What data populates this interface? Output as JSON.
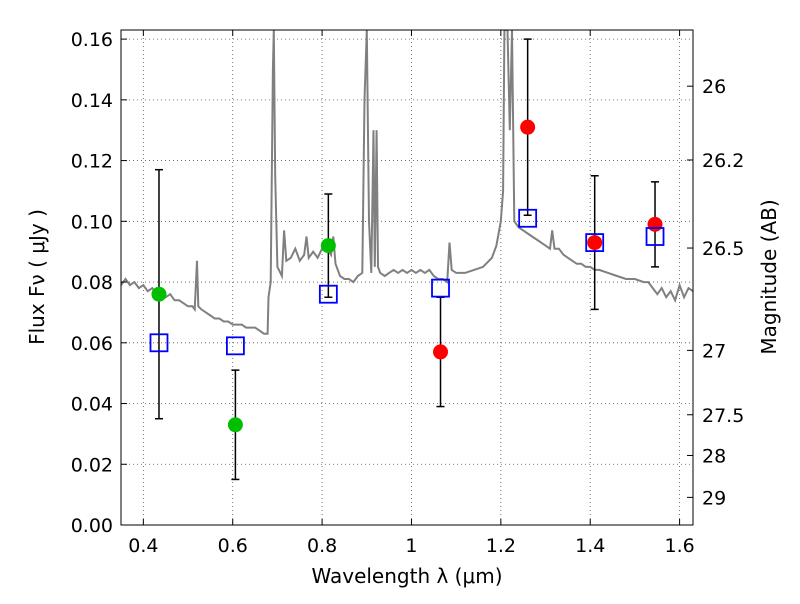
{
  "chart_data": {
    "type": "scatter",
    "xlabel": "Wavelength  λ (μm)",
    "ylabel": "Flux  Fν  ( μJy )",
    "y2label": "Magnitude (AB)",
    "xlim": [
      0.35,
      1.63
    ],
    "ylim": [
      0.0,
      0.163
    ],
    "grid": true,
    "x_ticks": [
      0.4,
      0.6,
      0.8,
      1.0,
      1.2,
      1.4,
      1.6
    ],
    "x_tick_labels": [
      "0.4",
      "0.6",
      "0.8",
      "1",
      "1.2",
      "1.4",
      "1.6"
    ],
    "y_ticks": [
      0.0,
      0.02,
      0.04,
      0.06,
      0.08,
      0.1,
      0.12,
      0.14,
      0.16
    ],
    "y_tick_labels": [
      "0.00",
      "0.02",
      "0.04",
      "0.06",
      "0.08",
      "0.10",
      "0.12",
      "0.14",
      "0.16"
    ],
    "y2_ticks": [
      {
        "label": "26",
        "flux": 0.1445
      },
      {
        "label": "26.2",
        "flux": 0.1202
      },
      {
        "label": "26.5",
        "flux": 0.0912
      },
      {
        "label": "27",
        "flux": 0.0575
      },
      {
        "label": "27.5",
        "flux": 0.0363
      },
      {
        "label": "28",
        "flux": 0.0229
      },
      {
        "label": "29",
        "flux": 0.0091
      }
    ],
    "colors": {
      "spectrum": "#808080",
      "green": "#00bf00",
      "red": "#ff0000",
      "model": "#0000ff",
      "errorbar": "#000000",
      "grid": "#555555"
    },
    "series": [
      {
        "marker": "circle",
        "color": "#00bf00",
        "points": [
          {
            "x": 0.435,
            "y": 0.076,
            "err": 0.041
          },
          {
            "x": 0.606,
            "y": 0.033,
            "err": 0.018
          },
          {
            "x": 0.814,
            "y": 0.092,
            "err": 0.017
          }
        ]
      },
      {
        "marker": "circle",
        "color": "#ff0000",
        "points": [
          {
            "x": 1.065,
            "y": 0.057,
            "err": 0.018
          },
          {
            "x": 1.26,
            "y": 0.131,
            "err": 0.029
          },
          {
            "x": 1.41,
            "y": 0.093,
            "err": 0.022
          },
          {
            "x": 1.545,
            "y": 0.099,
            "err": 0.014
          }
        ]
      },
      {
        "marker": "open-square",
        "color": "#0000ff",
        "points": [
          {
            "x": 0.435,
            "y": 0.06
          },
          {
            "x": 0.606,
            "y": 0.059
          },
          {
            "x": 0.814,
            "y": 0.076
          },
          {
            "x": 1.065,
            "y": 0.078
          },
          {
            "x": 1.26,
            "y": 0.101
          },
          {
            "x": 1.41,
            "y": 0.093
          },
          {
            "x": 1.545,
            "y": 0.095
          }
        ]
      }
    ],
    "spectrum": [
      [
        0.35,
        0.079
      ],
      [
        0.36,
        0.081
      ],
      [
        0.37,
        0.079
      ],
      [
        0.38,
        0.08
      ],
      [
        0.39,
        0.078
      ],
      [
        0.4,
        0.079
      ],
      [
        0.41,
        0.077
      ],
      [
        0.42,
        0.078
      ],
      [
        0.43,
        0.076
      ],
      [
        0.44,
        0.077
      ],
      [
        0.45,
        0.075
      ],
      [
        0.46,
        0.076
      ],
      [
        0.47,
        0.074
      ],
      [
        0.48,
        0.074
      ],
      [
        0.49,
        0.073
      ],
      [
        0.5,
        0.072
      ],
      [
        0.51,
        0.072
      ],
      [
        0.515,
        0.071
      ],
      [
        0.52,
        0.087
      ],
      [
        0.523,
        0.072
      ],
      [
        0.53,
        0.071
      ],
      [
        0.54,
        0.07
      ],
      [
        0.55,
        0.069
      ],
      [
        0.56,
        0.068
      ],
      [
        0.57,
        0.068
      ],
      [
        0.58,
        0.067
      ],
      [
        0.59,
        0.067
      ],
      [
        0.6,
        0.066
      ],
      [
        0.61,
        0.066
      ],
      [
        0.62,
        0.066
      ],
      [
        0.63,
        0.065
      ],
      [
        0.64,
        0.065
      ],
      [
        0.65,
        0.065
      ],
      [
        0.66,
        0.064
      ],
      [
        0.67,
        0.063
      ],
      [
        0.678,
        0.063
      ],
      [
        0.68,
        0.075
      ],
      [
        0.685,
        0.08
      ],
      [
        0.69,
        0.15
      ],
      [
        0.692,
        0.163
      ],
      [
        0.695,
        0.115
      ],
      [
        0.7,
        0.085
      ],
      [
        0.71,
        0.082
      ],
      [
        0.715,
        0.097
      ],
      [
        0.72,
        0.087
      ],
      [
        0.73,
        0.088
      ],
      [
        0.74,
        0.091
      ],
      [
        0.75,
        0.087
      ],
      [
        0.76,
        0.089
      ],
      [
        0.765,
        0.095
      ],
      [
        0.77,
        0.088
      ],
      [
        0.78,
        0.09
      ],
      [
        0.79,
        0.088
      ],
      [
        0.8,
        0.091
      ],
      [
        0.81,
        0.092
      ],
      [
        0.82,
        0.089
      ],
      [
        0.825,
        0.095
      ],
      [
        0.83,
        0.086
      ],
      [
        0.84,
        0.082
      ],
      [
        0.85,
        0.081
      ],
      [
        0.86,
        0.081
      ],
      [
        0.87,
        0.08
      ],
      [
        0.88,
        0.082
      ],
      [
        0.89,
        0.083
      ],
      [
        0.895,
        0.14
      ],
      [
        0.9,
        0.163
      ],
      [
        0.905,
        0.1
      ],
      [
        0.91,
        0.083
      ],
      [
        0.915,
        0.13
      ],
      [
        0.918,
        0.085
      ],
      [
        0.922,
        0.13
      ],
      [
        0.925,
        0.085
      ],
      [
        0.93,
        0.083
      ],
      [
        0.94,
        0.082
      ],
      [
        0.95,
        0.083
      ],
      [
        0.96,
        0.084
      ],
      [
        0.97,
        0.083
      ],
      [
        0.98,
        0.084
      ],
      [
        0.99,
        0.083
      ],
      [
        1.0,
        0.084
      ],
      [
        1.01,
        0.083
      ],
      [
        1.02,
        0.084
      ],
      [
        1.03,
        0.083
      ],
      [
        1.04,
        0.084
      ],
      [
        1.05,
        0.082
      ],
      [
        1.06,
        0.081
      ],
      [
        1.07,
        0.081
      ],
      [
        1.08,
        0.08
      ],
      [
        1.085,
        0.093
      ],
      [
        1.09,
        0.084
      ],
      [
        1.1,
        0.083
      ],
      [
        1.12,
        0.083
      ],
      [
        1.14,
        0.084
      ],
      [
        1.16,
        0.085
      ],
      [
        1.18,
        0.088
      ],
      [
        1.19,
        0.092
      ],
      [
        1.2,
        0.1
      ],
      [
        1.205,
        0.11
      ],
      [
        1.208,
        0.163
      ],
      [
        1.215,
        0.163
      ],
      [
        1.22,
        0.13
      ],
      [
        1.225,
        0.163
      ],
      [
        1.23,
        0.1
      ],
      [
        1.24,
        0.098
      ],
      [
        1.25,
        0.097
      ],
      [
        1.26,
        0.096
      ],
      [
        1.27,
        0.095
      ],
      [
        1.28,
        0.094
      ],
      [
        1.29,
        0.093
      ],
      [
        1.3,
        0.092
      ],
      [
        1.31,
        0.091
      ],
      [
        1.315,
        0.097
      ],
      [
        1.32,
        0.091
      ],
      [
        1.33,
        0.091
      ],
      [
        1.34,
        0.089
      ],
      [
        1.35,
        0.088
      ],
      [
        1.36,
        0.087
      ],
      [
        1.37,
        0.086
      ],
      [
        1.38,
        0.086
      ],
      [
        1.39,
        0.085
      ],
      [
        1.4,
        0.085
      ],
      [
        1.41,
        0.084
      ],
      [
        1.42,
        0.084
      ],
      [
        1.44,
        0.083
      ],
      [
        1.46,
        0.082
      ],
      [
        1.48,
        0.081
      ],
      [
        1.5,
        0.081
      ],
      [
        1.52,
        0.08
      ],
      [
        1.53,
        0.08
      ],
      [
        1.54,
        0.078
      ],
      [
        1.55,
        0.076
      ],
      [
        1.56,
        0.078
      ],
      [
        1.57,
        0.075
      ],
      [
        1.58,
        0.077
      ],
      [
        1.59,
        0.074
      ],
      [
        1.6,
        0.079
      ],
      [
        1.61,
        0.075
      ],
      [
        1.62,
        0.078
      ],
      [
        1.63,
        0.077
      ]
    ]
  }
}
